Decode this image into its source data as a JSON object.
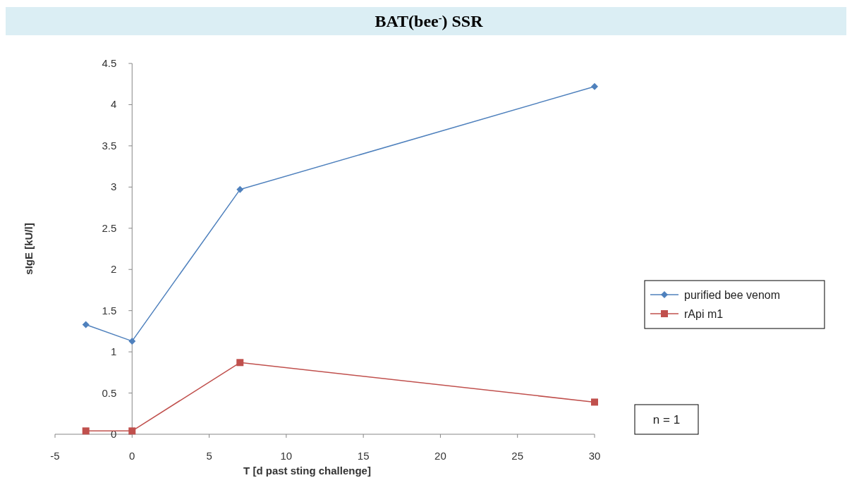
{
  "chart_data": {
    "type": "line",
    "title": "BAT(bee$^{-}$) SSR",
    "xlabel": "T [d past sting challenge]",
    "ylabel": "sIgE [kU/l]",
    "x": [
      -3,
      0,
      7,
      30
    ],
    "series": [
      {
        "name": "purified bee venom",
        "color": "#4f81bd",
        "marker": "diamond",
        "values": [
          1.33,
          1.13,
          2.97,
          4.22
        ]
      },
      {
        "name": "rApi m1",
        "color": "#c0504d",
        "marker": "square",
        "values": [
          0.04,
          0.04,
          0.87,
          0.39
        ]
      }
    ],
    "xlim": [
      -5,
      30
    ],
    "xticks": [
      -5,
      0,
      5,
      10,
      15,
      20,
      25,
      30
    ],
    "ylim": [
      0,
      4.5
    ],
    "yticks": [
      0,
      0.5,
      1,
      1.5,
      2,
      2.5,
      3,
      3.5,
      4,
      4.5
    ],
    "legend": "right",
    "grid": false,
    "annotations": [
      "n = 1"
    ]
  }
}
